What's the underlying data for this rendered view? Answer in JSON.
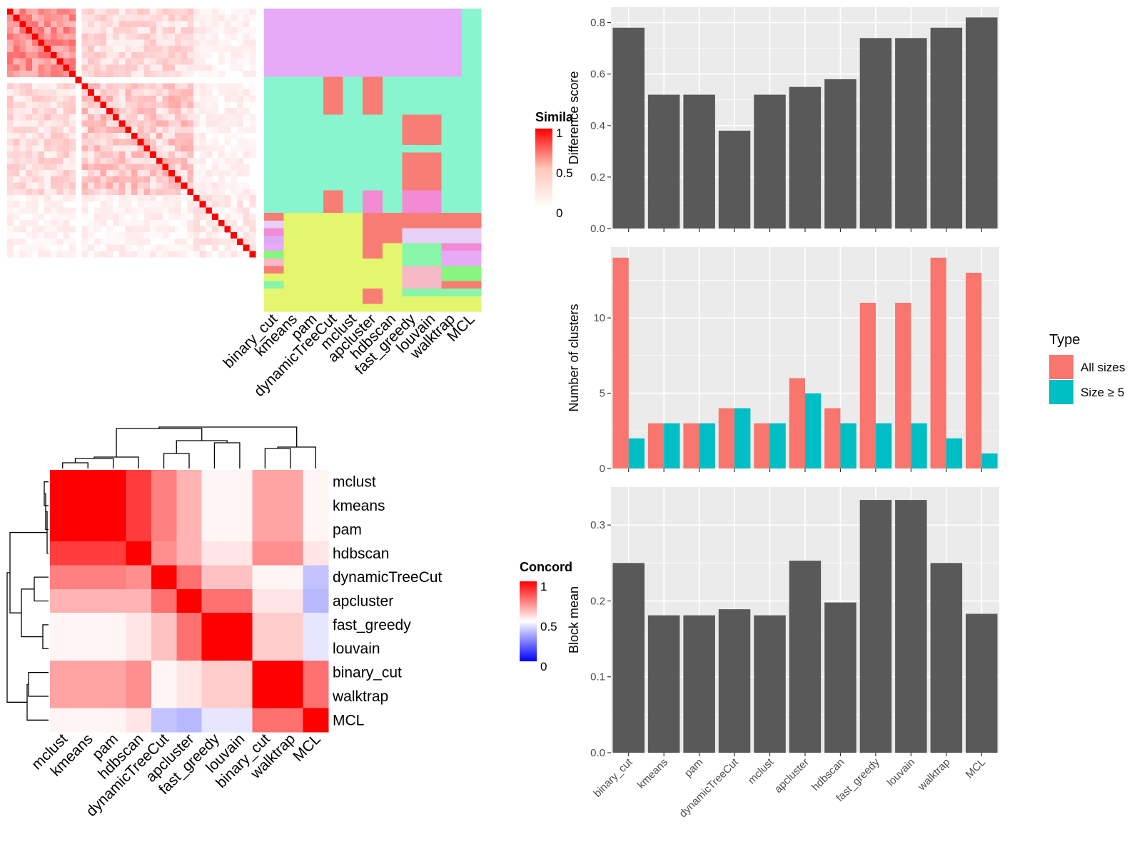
{
  "methods_order": [
    "binary_cut",
    "kmeans",
    "pam",
    "dynamicTreeCut",
    "mclust",
    "apcluster",
    "hdbscan",
    "fast_greedy",
    "louvain",
    "walktrap",
    "MCL"
  ],
  "similarity_legend": {
    "title": "Simila",
    "ticks": [
      "1",
      "0.5",
      "0"
    ]
  },
  "concordance_legend": {
    "title": "Concord",
    "ticks": [
      "1",
      "0.5",
      "0"
    ]
  },
  "type_legend": {
    "title": "Type",
    "items": [
      {
        "label": "All sizes",
        "color": "#F8766D"
      },
      {
        "label": "Size ≥ 5",
        "color": "#00BFC4"
      }
    ]
  },
  "colors": {
    "panel_bg": "#EBEBEB",
    "bar_dark": "#595959",
    "heat_red": "#FF0000",
    "heat_blue": "#0000FF"
  },
  "chart_data": [
    {
      "type": "heatmap",
      "name": "concordance",
      "rows": [
        "mclust",
        "kmeans",
        "pam",
        "hdbscan",
        "dynamicTreeCut",
        "apcluster",
        "fast_greedy",
        "louvain",
        "binary_cut",
        "walktrap",
        "MCL"
      ],
      "columns": [
        "mclust",
        "kmeans",
        "pam",
        "hdbscan",
        "dynamicTreeCut",
        "apcluster",
        "fast_greedy",
        "louvain",
        "binary_cut",
        "walktrap",
        "MCL"
      ],
      "values": [
        [
          1.0,
          1.0,
          1.0,
          0.88,
          0.75,
          0.65,
          0.52,
          0.52,
          0.68,
          0.68,
          0.52
        ],
        [
          1.0,
          1.0,
          1.0,
          0.88,
          0.75,
          0.65,
          0.52,
          0.52,
          0.68,
          0.68,
          0.52
        ],
        [
          1.0,
          1.0,
          1.0,
          0.88,
          0.75,
          0.65,
          0.52,
          0.52,
          0.68,
          0.68,
          0.52
        ],
        [
          0.88,
          0.88,
          0.88,
          1.0,
          0.72,
          0.65,
          0.55,
          0.55,
          0.72,
          0.72,
          0.55
        ],
        [
          0.75,
          0.75,
          0.75,
          0.72,
          1.0,
          0.78,
          0.62,
          0.62,
          0.52,
          0.52,
          0.38
        ],
        [
          0.65,
          0.65,
          0.65,
          0.65,
          0.78,
          1.0,
          0.78,
          0.78,
          0.55,
          0.55,
          0.36
        ],
        [
          0.52,
          0.52,
          0.52,
          0.55,
          0.62,
          0.78,
          1.0,
          1.0,
          0.6,
          0.6,
          0.45
        ],
        [
          0.52,
          0.52,
          0.52,
          0.55,
          0.62,
          0.78,
          1.0,
          1.0,
          0.6,
          0.6,
          0.45
        ],
        [
          0.68,
          0.68,
          0.68,
          0.72,
          0.52,
          0.55,
          0.6,
          0.6,
          1.0,
          1.0,
          0.78
        ],
        [
          0.68,
          0.68,
          0.68,
          0.72,
          0.52,
          0.55,
          0.6,
          0.6,
          1.0,
          1.0,
          0.78
        ],
        [
          0.52,
          0.52,
          0.52,
          0.55,
          0.38,
          0.36,
          0.45,
          0.45,
          0.78,
          0.78,
          1.0
        ]
      ],
      "scale": [
        0,
        1
      ]
    },
    {
      "type": "bar",
      "name": "difference",
      "categories": [
        "binary_cut",
        "kmeans",
        "pam",
        "dynamicTreeCut",
        "mclust",
        "apcluster",
        "hdbscan",
        "fast_greedy",
        "louvain",
        "walktrap",
        "MCL"
      ],
      "values": [
        0.78,
        0.52,
        0.52,
        0.38,
        0.52,
        0.55,
        0.58,
        0.74,
        0.74,
        0.78,
        0.82
      ],
      "ylabel": "Difference score",
      "ylim": [
        0,
        0.86
      ],
      "yticks": [
        0.0,
        0.2,
        0.4,
        0.6,
        0.8
      ],
      "ytick_labels": [
        "0.0",
        "0.2",
        "0.4",
        "0.6",
        "0.8"
      ]
    },
    {
      "type": "bar",
      "name": "clusters",
      "categories": [
        "binary_cut",
        "kmeans",
        "pam",
        "dynamicTreeCut",
        "mclust",
        "apcluster",
        "hdbscan",
        "fast_greedy",
        "louvain",
        "walktrap",
        "MCL"
      ],
      "series": [
        {
          "name": "All sizes",
          "values": [
            14,
            3,
            3,
            4,
            3,
            6,
            4,
            11,
            11,
            14,
            13
          ]
        },
        {
          "name": "Size ≥ 5",
          "values": [
            2,
            3,
            3,
            4,
            3,
            5,
            3,
            3,
            3,
            2,
            1
          ]
        }
      ],
      "ylabel": "Number of clusters",
      "ylim": [
        0,
        14.7
      ],
      "yticks": [
        0,
        5,
        10
      ],
      "ytick_labels": [
        "0",
        "5",
        "10"
      ]
    },
    {
      "type": "bar",
      "name": "block_mean",
      "categories": [
        "binary_cut",
        "kmeans",
        "pam",
        "dynamicTreeCut",
        "mclust",
        "apcluster",
        "hdbscan",
        "fast_greedy",
        "louvain",
        "walktrap",
        "MCL"
      ],
      "values": [
        0.25,
        0.181,
        0.181,
        0.189,
        0.181,
        0.253,
        0.198,
        0.333,
        0.333,
        0.25,
        0.183
      ],
      "ylabel": "Block mean",
      "ylim": [
        0,
        0.35
      ],
      "yticks": [
        0.0,
        0.1,
        0.2,
        0.3
      ],
      "ytick_labels": [
        "0.0",
        "0.1",
        "0.2",
        "0.3"
      ]
    }
  ]
}
